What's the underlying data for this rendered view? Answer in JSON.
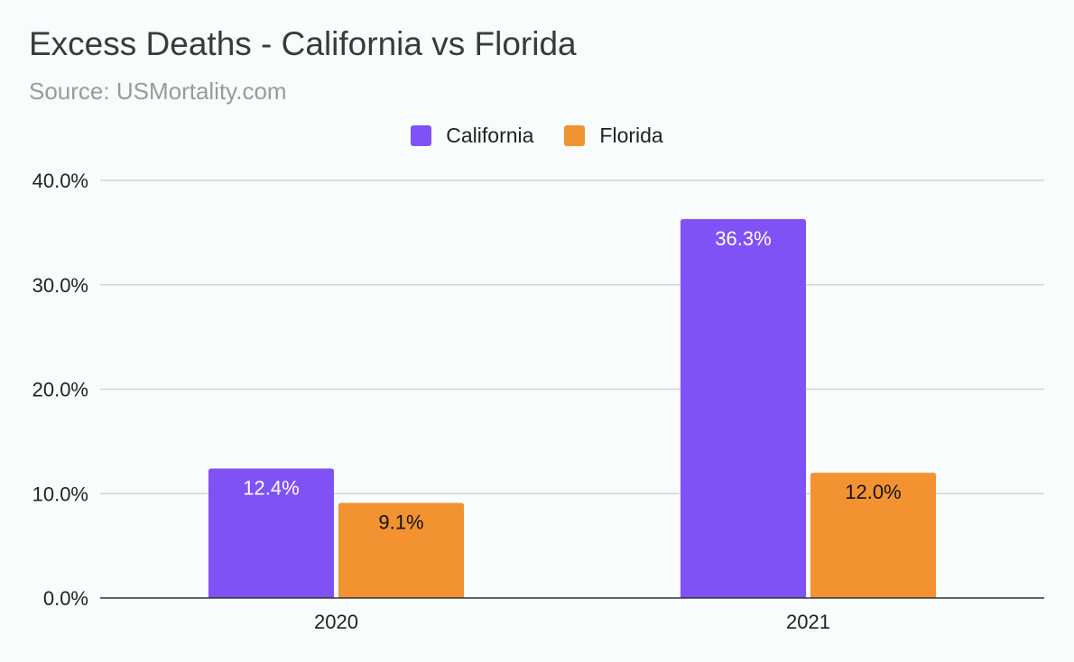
{
  "chart_data": {
    "type": "bar",
    "title": "Excess Deaths - California vs Florida",
    "subtitle": "Source: USMortality.com",
    "categories": [
      "2020",
      "2021"
    ],
    "series": [
      {
        "name": "California",
        "color": "#7f52f5",
        "values": [
          12.4,
          36.3
        ],
        "labels": [
          "12.4%",
          "36.3%"
        ],
        "label_color": "#ffffff"
      },
      {
        "name": "Florida",
        "color": "#f39230",
        "values": [
          9.1,
          12.0
        ],
        "labels": [
          "9.1%",
          "12.0%"
        ],
        "label_color": "#111111"
      }
    ],
    "ylim": [
      0,
      40
    ],
    "y_ticks": [
      {
        "value": 0,
        "label": "0.0%"
      },
      {
        "value": 10,
        "label": "10.0%"
      },
      {
        "value": 20,
        "label": "20.0%"
      },
      {
        "value": 30,
        "label": "30.0%"
      },
      {
        "value": 40,
        "label": "40.0%"
      }
    ],
    "grid": true,
    "legend_position": "top-center"
  }
}
